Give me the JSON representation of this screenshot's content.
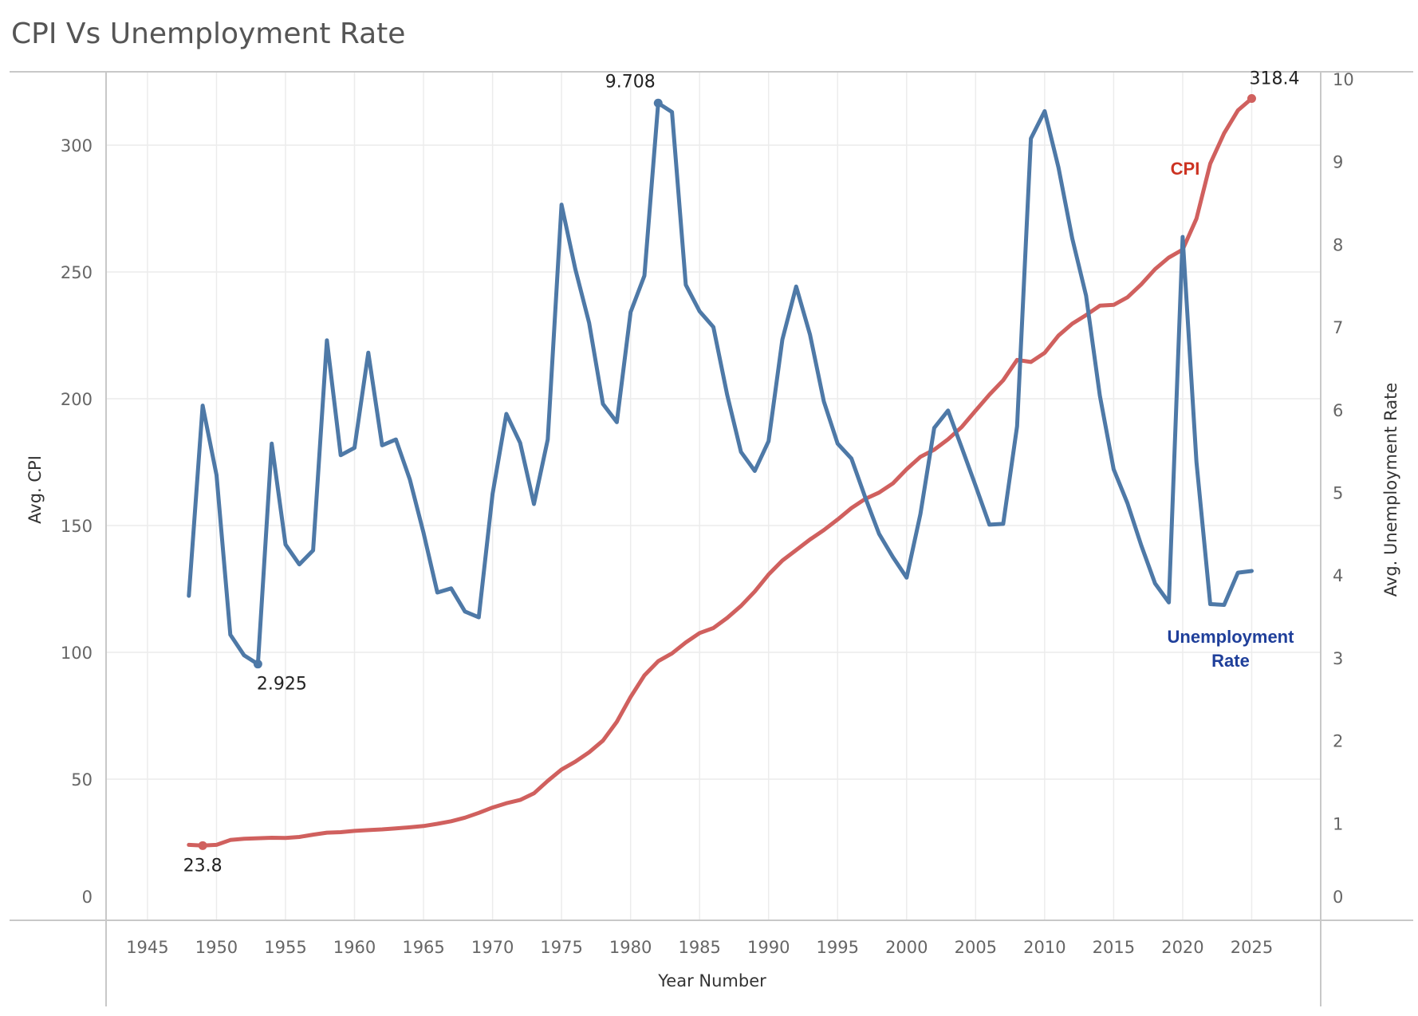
{
  "page_title": "CPI Vs Unemployment Rate",
  "chart_data": {
    "type": "line",
    "title": "CPI Vs Unemployment Rate",
    "xlabel": "Year Number",
    "ylabel_left": "Avg. CPI",
    "ylabel_right": "Avg. Unemployment Rate",
    "xlim": [
      1942,
      2030
    ],
    "ylim_left": [
      0,
      340
    ],
    "ylim_right": [
      0,
      10.2
    ],
    "x_ticks": [
      1945,
      1950,
      1955,
      1960,
      1965,
      1970,
      1975,
      1980,
      1985,
      1990,
      1995,
      2000,
      2005,
      2010,
      2015,
      2020,
      2025
    ],
    "y_ticks_left": [
      0,
      50,
      100,
      150,
      200,
      250,
      300
    ],
    "y_ticks_right": [
      0,
      1,
      2,
      3,
      4,
      5,
      6,
      7,
      8,
      9,
      10
    ],
    "grid": true,
    "colors": {
      "cpi": "#d0605e",
      "unemployment": "#4e79a7",
      "cpi_label": "#cc3322",
      "unemployment_label": "#1f3f9a"
    },
    "series": [
      {
        "name": "CPI",
        "axis": "left",
        "x": [
          1948,
          1949,
          1950,
          1951,
          1952,
          1953,
          1954,
          1955,
          1956,
          1957,
          1958,
          1959,
          1960,
          1961,
          1962,
          1963,
          1964,
          1965,
          1966,
          1967,
          1968,
          1969,
          1970,
          1971,
          1972,
          1973,
          1974,
          1975,
          1976,
          1977,
          1978,
          1979,
          1980,
          1981,
          1982,
          1983,
          1984,
          1985,
          1986,
          1987,
          1988,
          1989,
          1990,
          1991,
          1992,
          1993,
          1994,
          1995,
          1996,
          1997,
          1998,
          1999,
          2000,
          2001,
          2002,
          2003,
          2004,
          2005,
          2006,
          2007,
          2008,
          2009,
          2010,
          2011,
          2012,
          2013,
          2014,
          2015,
          2016,
          2017,
          2018,
          2019,
          2020,
          2021,
          2022,
          2023,
          2024,
          2025
        ],
        "values": [
          24.1,
          23.8,
          24.1,
          26.0,
          26.5,
          26.7,
          26.9,
          26.8,
          27.2,
          28.1,
          28.9,
          29.1,
          29.6,
          29.9,
          30.2,
          30.6,
          31.0,
          31.5,
          32.4,
          33.4,
          34.8,
          36.7,
          38.8,
          40.5,
          41.8,
          44.4,
          49.3,
          53.8,
          56.9,
          60.6,
          65.2,
          72.6,
          82.4,
          90.9,
          96.5,
          99.6,
          103.9,
          107.6,
          109.6,
          113.6,
          118.3,
          124.0,
          130.7,
          136.2,
          140.3,
          144.5,
          148.2,
          152.4,
          156.9,
          160.5,
          163.0,
          166.6,
          172.2,
          177.1,
          179.9,
          184.0,
          188.9,
          195.3,
          201.6,
          207.3,
          215.3,
          214.5,
          218.1,
          224.9,
          229.6,
          233.0,
          236.7,
          237.0,
          240.0,
          245.1,
          251.1,
          255.7,
          258.8,
          271.0,
          292.7,
          304.7,
          313.7,
          318.4
        ]
      },
      {
        "name": "Unemployment Rate",
        "axis": "right",
        "x": [
          1948,
          1949,
          1950,
          1951,
          1952,
          1953,
          1954,
          1955,
          1956,
          1957,
          1958,
          1959,
          1960,
          1961,
          1962,
          1963,
          1964,
          1965,
          1966,
          1967,
          1968,
          1969,
          1970,
          1971,
          1972,
          1973,
          1974,
          1975,
          1976,
          1977,
          1978,
          1979,
          1980,
          1981,
          1982,
          1983,
          1984,
          1985,
          1986,
          1987,
          1988,
          1989,
          1990,
          1991,
          1992,
          1993,
          1994,
          1995,
          1996,
          1997,
          1998,
          1999,
          2000,
          2001,
          2002,
          2003,
          2004,
          2005,
          2006,
          2007,
          2008,
          2009,
          2010,
          2011,
          2012,
          2013,
          2014,
          2015,
          2016,
          2017,
          2018,
          2019,
          2020,
          2021,
          2022,
          2023,
          2024,
          2025
        ],
        "values": [
          3.75,
          6.05,
          5.21,
          3.28,
          3.03,
          2.925,
          5.59,
          4.37,
          4.13,
          4.3,
          6.84,
          5.45,
          5.54,
          6.69,
          5.57,
          5.64,
          5.16,
          4.51,
          3.79,
          3.84,
          3.56,
          3.49,
          4.98,
          5.95,
          5.6,
          4.86,
          5.64,
          8.48,
          7.7,
          7.05,
          6.07,
          5.85,
          7.18,
          7.62,
          9.708,
          9.6,
          7.51,
          7.19,
          7.0,
          6.18,
          5.49,
          5.26,
          5.62,
          6.85,
          7.49,
          6.91,
          6.1,
          5.59,
          5.41,
          4.94,
          4.5,
          4.22,
          3.97,
          4.74,
          5.78,
          5.99,
          5.54,
          5.08,
          4.61,
          4.62,
          5.8,
          9.28,
          9.61,
          8.93,
          8.07,
          7.38,
          6.17,
          5.28,
          4.87,
          4.36,
          3.9,
          3.67,
          8.09,
          5.37,
          3.65,
          3.64,
          4.03,
          4.05
        ]
      }
    ],
    "annotations": [
      {
        "text": "318.4",
        "series": "CPI",
        "x": 2025,
        "y": 318.4
      },
      {
        "text": "23.8",
        "series": "CPI",
        "x": 1949,
        "y": 23.8
      },
      {
        "text": "9.708",
        "series": "Unemployment Rate",
        "x": 1982,
        "y": 9.708
      },
      {
        "text": "2.925",
        "series": "Unemployment Rate",
        "x": 1953,
        "y": 2.925
      }
    ],
    "series_labels": {
      "cpi": "CPI",
      "unemployment_line1": "Unemployment",
      "unemployment_line2": "Rate"
    }
  }
}
